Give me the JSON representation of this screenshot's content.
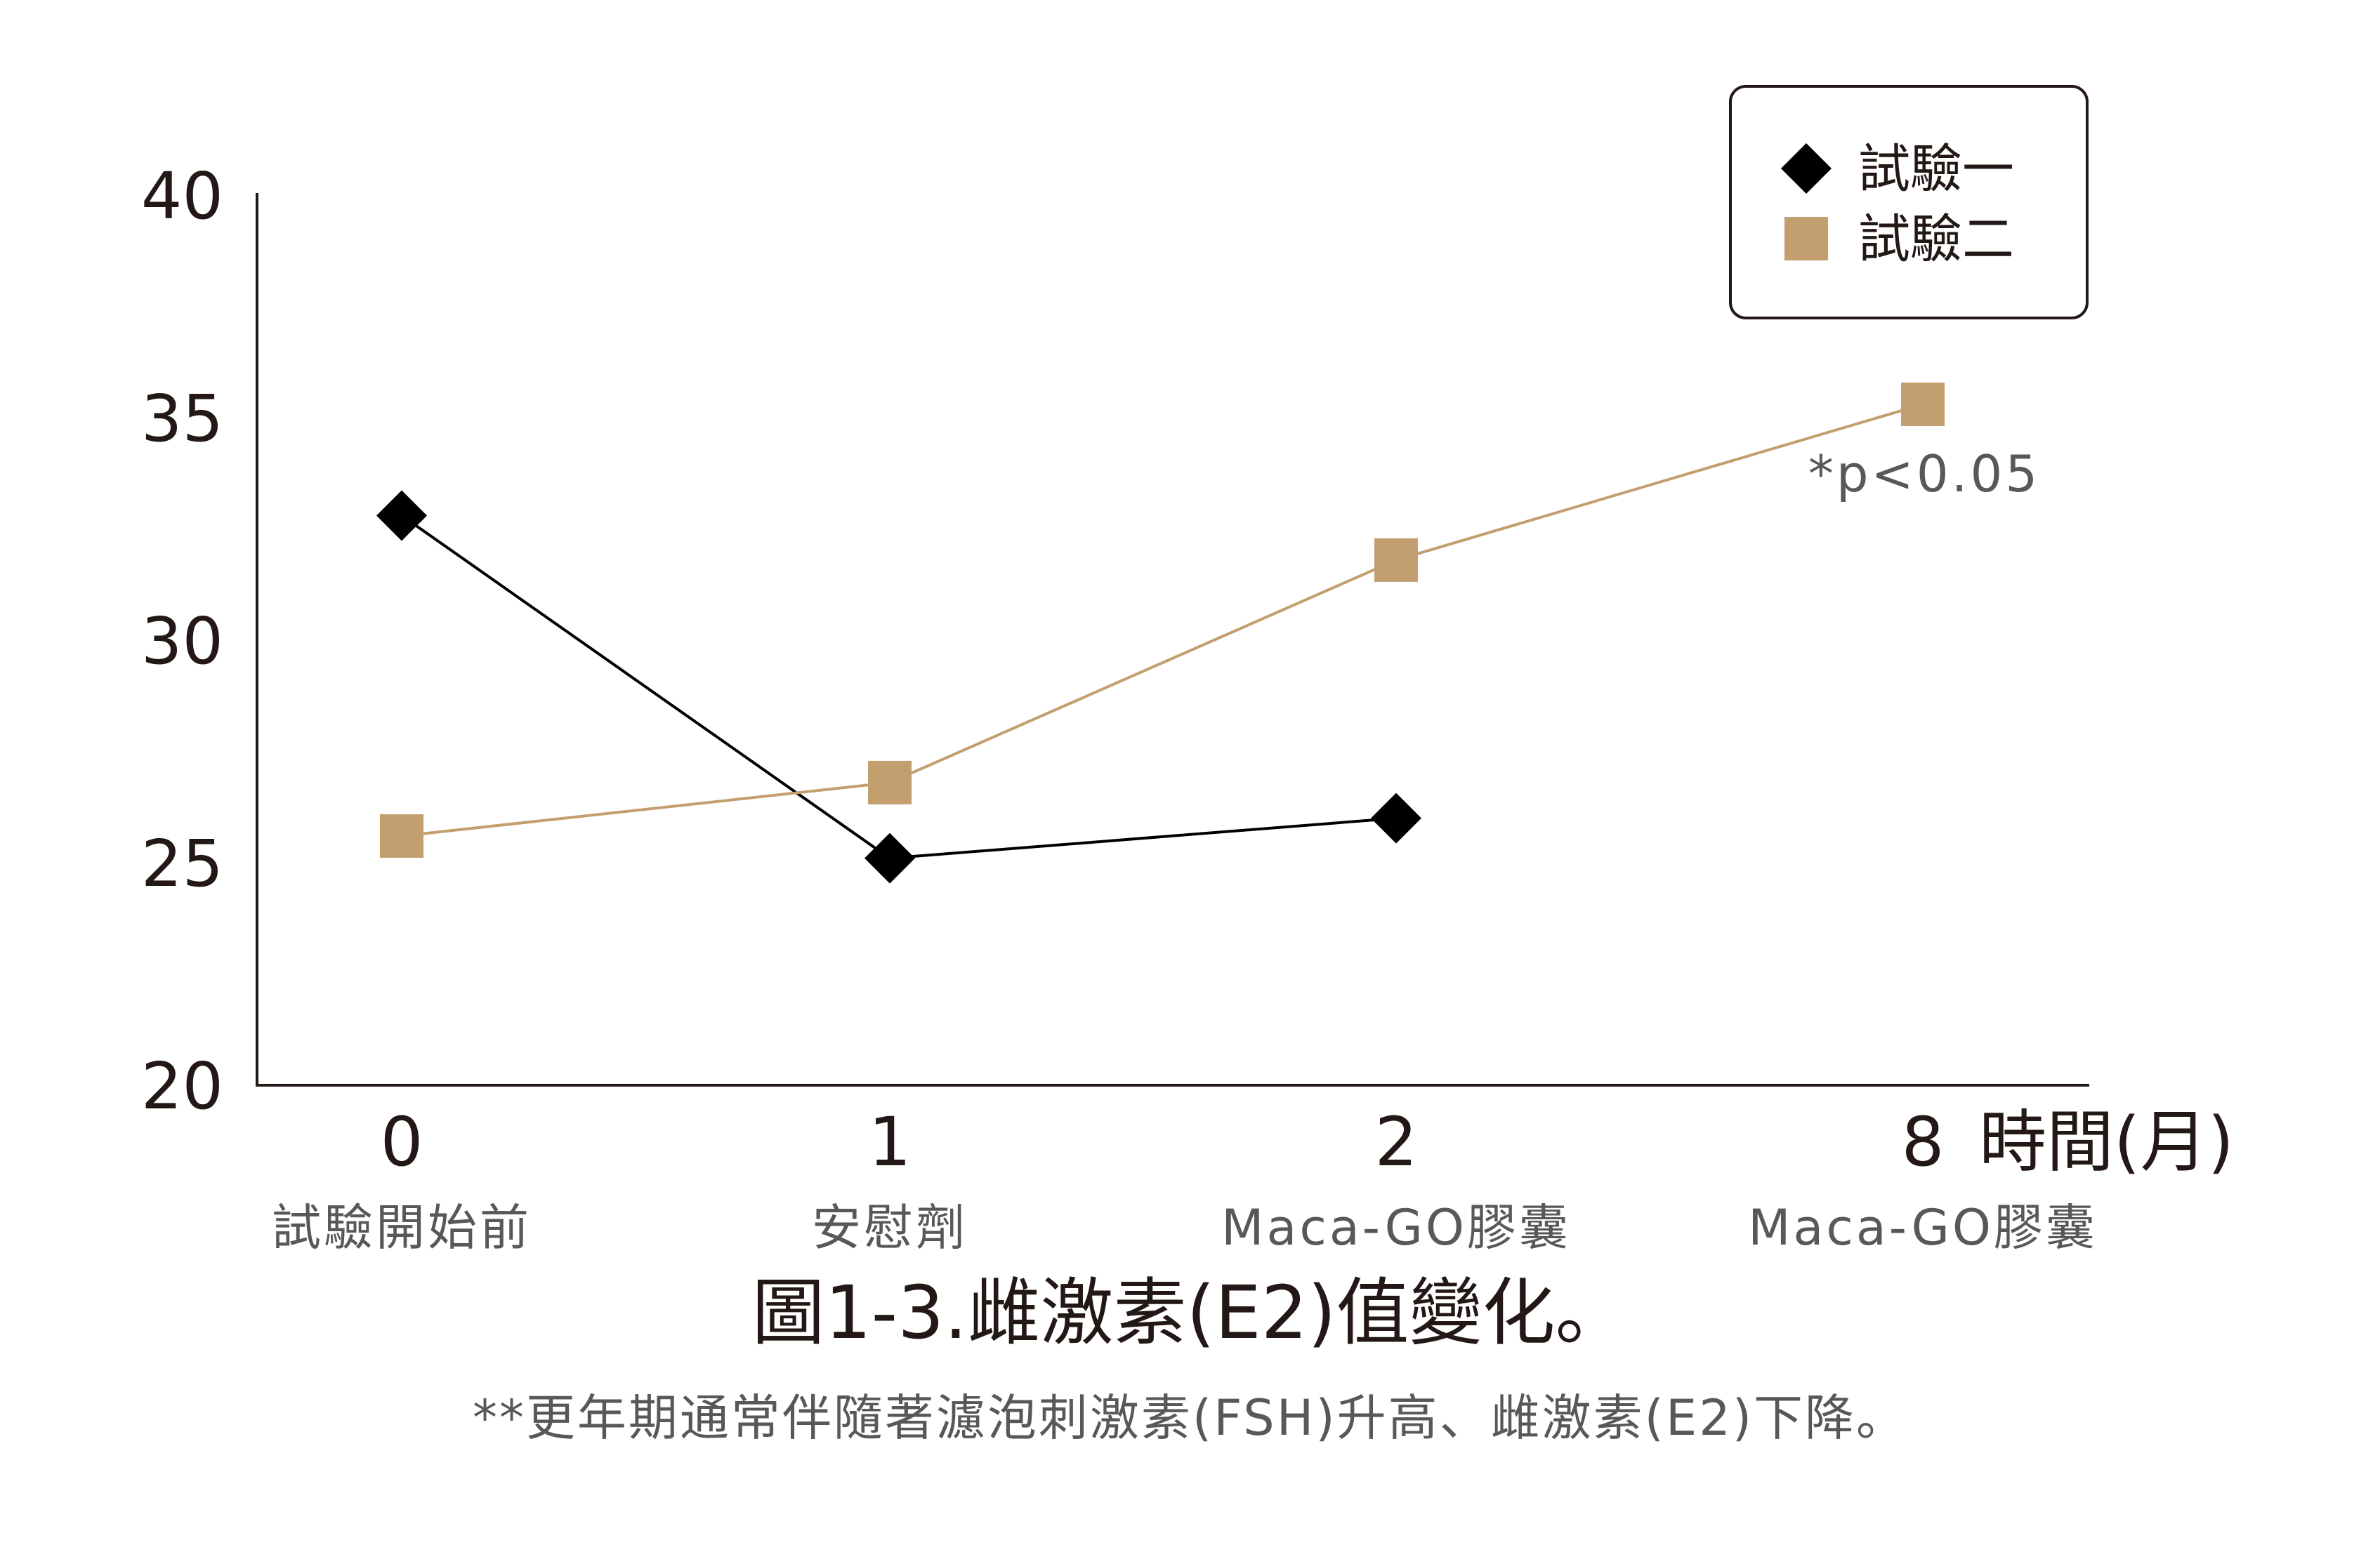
{
  "chart_data": {
    "type": "line",
    "title": "圖1-3.雌激素(E2)值變化。",
    "subtitle": "**更年期通常伴隨著濾泡刺激素(FSH)升高、雌激素(E2)下降。",
    "xlabel": "時間(月)",
    "ylabel": "",
    "categories": [
      "0",
      "1",
      "2",
      "8"
    ],
    "category_sublabels": [
      "試驗開始前",
      "安慰劑",
      "Maca-GO膠囊",
      "Maca-GO膠囊"
    ],
    "ylim": [
      20,
      40
    ],
    "yticks": [
      "20",
      "25",
      "30",
      "35",
      "40"
    ],
    "series": [
      {
        "name": "試驗一",
        "marker": "diamond",
        "color": "#000000",
        "values": [
          32.8,
          25.1,
          26.0,
          null
        ]
      },
      {
        "name": "試驗二",
        "marker": "square",
        "color": "#C39E6E",
        "values": [
          25.6,
          26.8,
          31.8,
          35.3
        ]
      }
    ],
    "annotations": [
      {
        "text": "*p<0.05",
        "category": "8",
        "series": "試驗二"
      }
    ],
    "legend_position": "top-right",
    "grid": false
  }
}
